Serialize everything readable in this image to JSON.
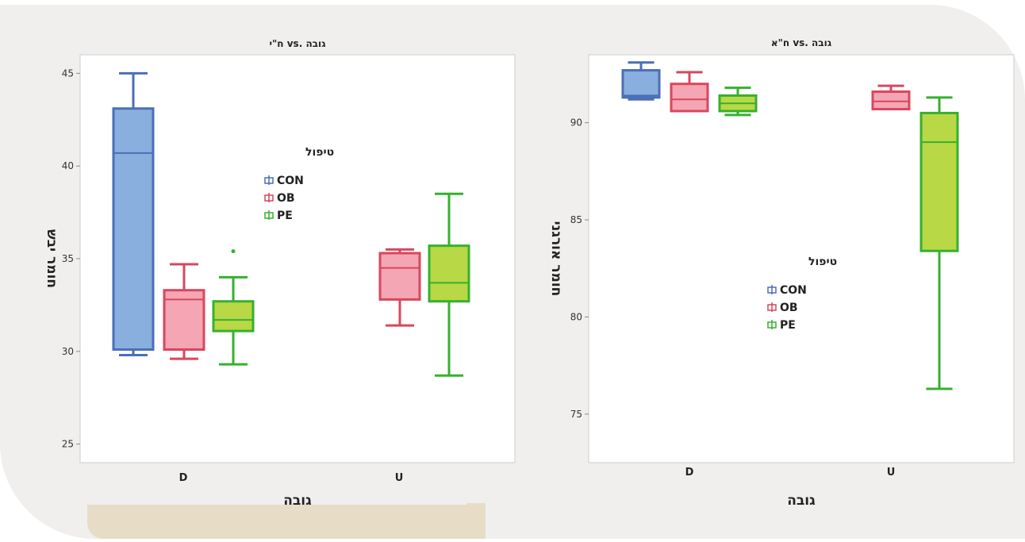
{
  "colors": {
    "CON": {
      "stroke": "#4a6fb8",
      "fill": "#89afde"
    },
    "OB": {
      "stroke": "#d8475e",
      "fill": "#f5a6b4"
    },
    "PE": {
      "stroke": "#37b02f",
      "fill": "#b8d845"
    },
    "frame": "#cccccc",
    "background": "#f1efee",
    "accent": "#e7dcc6"
  },
  "chart_data": [
    {
      "type": "box",
      "title": "גובה .vs ח\"י",
      "xlabel": "גובה",
      "ylabel": "חומר יבש",
      "categories": [
        "D",
        "U"
      ],
      "ylim": [
        24,
        46
      ],
      "yticks": [
        25,
        30,
        35,
        40,
        45
      ],
      "grid": false,
      "legend": {
        "title": "טיפול",
        "placement": "center",
        "entries": [
          "CON",
          "OB",
          "PE"
        ]
      },
      "series": [
        {
          "name": "CON",
          "boxes": [
            {
              "category": "D",
              "min": 29.8,
              "q1": 30.1,
              "median": 40.7,
              "q3": 43.1,
              "max": 45.0,
              "outliers": []
            }
          ]
        },
        {
          "name": "OB",
          "boxes": [
            {
              "category": "D",
              "min": 29.6,
              "q1": 30.1,
              "median": 32.8,
              "q3": 33.3,
              "max": 34.7,
              "outliers": []
            },
            {
              "category": "U",
              "min": 31.4,
              "q1": 32.8,
              "median": 34.5,
              "q3": 35.3,
              "max": 35.5,
              "outliers": []
            }
          ]
        },
        {
          "name": "PE",
          "boxes": [
            {
              "category": "D",
              "min": 29.3,
              "q1": 31.1,
              "median": 31.7,
              "q3": 32.7,
              "max": 34.0,
              "outliers": [
                35.4
              ]
            },
            {
              "category": "U",
              "min": 28.7,
              "q1": 32.7,
              "median": 33.7,
              "q3": 35.7,
              "max": 38.5,
              "outliers": []
            }
          ]
        }
      ]
    },
    {
      "type": "box",
      "title": "גובה .vs ח\"א",
      "xlabel": "גובה",
      "ylabel": "חומר אורגני",
      "categories": [
        "D",
        "U"
      ],
      "ylim": [
        72.5,
        93.5
      ],
      "yticks": [
        75,
        80,
        85,
        90
      ],
      "grid": false,
      "legend": {
        "title": "טיפול",
        "placement": "center",
        "entries": [
          "CON",
          "OB",
          "PE"
        ]
      },
      "series": [
        {
          "name": "CON",
          "boxes": [
            {
              "category": "D",
              "min": 91.2,
              "q1": 91.3,
              "median": 91.4,
              "q3": 92.7,
              "max": 93.1,
              "outliers": []
            }
          ]
        },
        {
          "name": "OB",
          "boxes": [
            {
              "category": "D",
              "min": 90.6,
              "q1": 90.6,
              "median": 91.2,
              "q3": 92.0,
              "max": 92.6,
              "outliers": []
            },
            {
              "category": "U",
              "min": 90.7,
              "q1": 90.7,
              "median": 91.1,
              "q3": 91.6,
              "max": 91.9,
              "outliers": []
            }
          ]
        },
        {
          "name": "PE",
          "boxes": [
            {
              "category": "D",
              "min": 90.4,
              "q1": 90.6,
              "median": 91.0,
              "q3": 91.4,
              "max": 91.8,
              "outliers": []
            },
            {
              "category": "U",
              "min": 76.3,
              "q1": 83.4,
              "median": 89.0,
              "q3": 90.5,
              "max": 91.3,
              "outliers": []
            }
          ]
        }
      ]
    }
  ]
}
